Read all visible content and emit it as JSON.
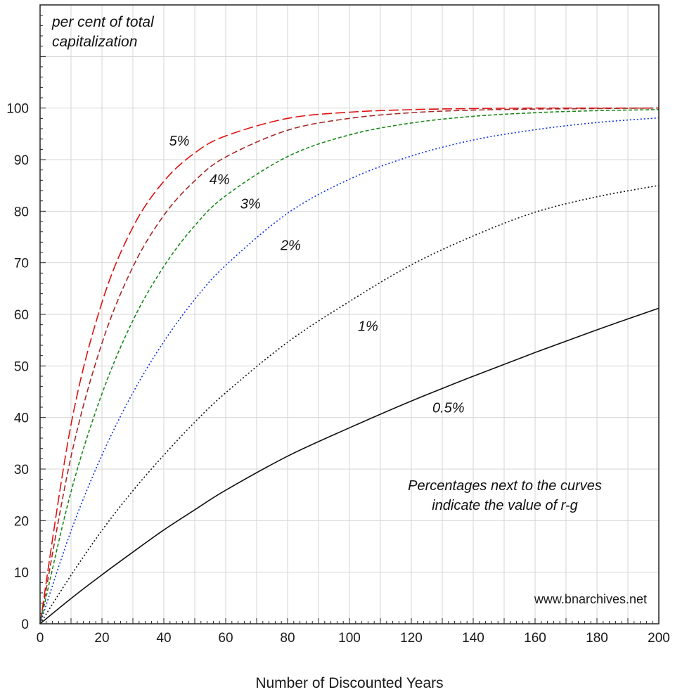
{
  "chart_data": {
    "type": "line",
    "title": "",
    "xlabel": "Number of Discounted Years",
    "ylabel": "per cent of total capitalization",
    "ylabel_lines": [
      "per cent of total",
      "capitalization"
    ],
    "xlim": [
      0,
      200
    ],
    "ylim": [
      0,
      120
    ],
    "x_ticks": [
      0,
      20,
      40,
      60,
      80,
      100,
      120,
      140,
      160,
      180,
      200
    ],
    "y_ticks": [
      0,
      10,
      20,
      30,
      40,
      50,
      60,
      70,
      80,
      90,
      100
    ],
    "x_tick_labels": [
      "0",
      "20",
      "40",
      "60",
      "80",
      "100",
      "120",
      "140",
      "160",
      "180",
      "200"
    ],
    "y_tick_labels": [
      "0",
      "10",
      "20",
      "30",
      "40",
      "50",
      "60",
      "70",
      "80",
      "90",
      "100"
    ],
    "grid": true,
    "x": [
      0,
      10,
      20,
      30,
      40,
      50,
      60,
      80,
      100,
      120,
      140,
      160,
      180,
      200
    ],
    "series": [
      {
        "name": "5%",
        "color": "#e01010",
        "dash": "long-dash",
        "values": [
          0,
          38.6,
          62.3,
          76.9,
          85.8,
          91.3,
          94.6,
          98.0,
          99.2,
          99.7,
          99.9,
          100.0,
          100.0,
          100.0
        ]
      },
      {
        "name": "4%",
        "color": "#a52a2a",
        "dash": "dash",
        "values": [
          0,
          32.4,
          54.4,
          69.2,
          79.2,
          85.9,
          90.5,
          95.7,
          98.0,
          99.1,
          99.6,
          99.8,
          99.9,
          100.0
        ]
      },
      {
        "name": "3%",
        "color": "#1a8a1a",
        "dash": "short-dash",
        "values": [
          0,
          25.6,
          44.6,
          58.8,
          69.3,
          77.2,
          83.0,
          90.6,
          94.8,
          97.1,
          98.4,
          99.1,
          99.5,
          99.7
        ]
      },
      {
        "name": "2%",
        "color": "#1030e0",
        "dash": "dot",
        "values": [
          0,
          18.0,
          32.7,
          44.8,
          54.7,
          62.9,
          69.5,
          79.6,
          86.2,
          90.7,
          93.8,
          95.8,
          97.2,
          98.1
        ]
      },
      {
        "name": "1%",
        "color": "#111111",
        "dash": "dot",
        "values": [
          0,
          9.4,
          18.1,
          25.8,
          32.7,
          39.1,
          44.8,
          54.6,
          62.5,
          69.6,
          75.2,
          79.8,
          82.8,
          85.0
        ]
      },
      {
        "name": "0.5%",
        "color": "#111111",
        "dash": "solid",
        "values": [
          0,
          4.9,
          9.5,
          13.9,
          18.2,
          22.1,
          25.9,
          32.5,
          38.0,
          43.2,
          48.0,
          52.6,
          57.0,
          61.2
        ]
      }
    ],
    "curve_labels": [
      {
        "text": "5%",
        "x": 45,
        "y": 92.7
      },
      {
        "text": "4%",
        "x": 58,
        "y": 85.2
      },
      {
        "text": "3%",
        "x": 68,
        "y": 80.5
      },
      {
        "text": "2%",
        "x": 81,
        "y": 72.5
      },
      {
        "text": "1%",
        "x": 106,
        "y": 56.8
      },
      {
        "text": "0.5%",
        "x": 132,
        "y": 41.0
      }
    ],
    "annotation_lines": [
      "Percentages next to the curves",
      "indicate the value of r-g"
    ],
    "credit": "www.bnarchives.net",
    "legend": "none"
  }
}
